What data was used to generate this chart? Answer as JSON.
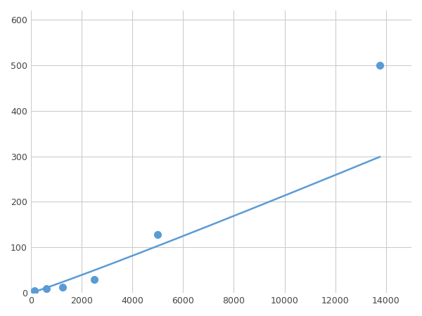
{
  "x_data": [
    156,
    625,
    1250,
    2500,
    5000,
    13750
  ],
  "y_data": [
    5,
    10,
    12,
    30,
    128,
    500
  ],
  "line_color": "#5b9bd5",
  "marker_color": "#5b9bd5",
  "marker_size": 7,
  "xlim": [
    0,
    15000
  ],
  "ylim": [
    0,
    620
  ],
  "xticks": [
    0,
    2000,
    4000,
    6000,
    8000,
    10000,
    12000,
    14000
  ],
  "yticks": [
    0,
    100,
    200,
    300,
    400,
    500,
    600
  ],
  "grid_color": "#cccccc",
  "background_color": "#ffffff",
  "line_width": 1.8
}
